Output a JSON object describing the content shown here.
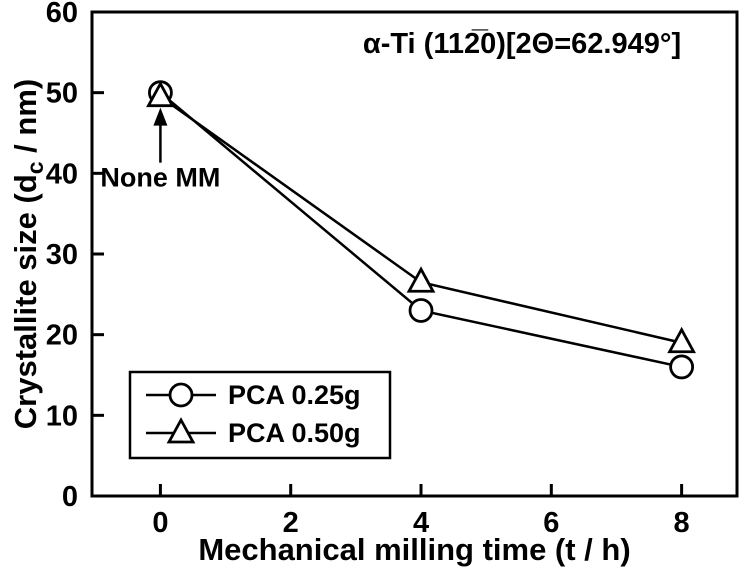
{
  "figure": {
    "background": "#ffffff",
    "line_color": "#000000"
  },
  "chart_data": {
    "type": "line",
    "title": "α-Ti (112̅0)[2Θ=62.949°]",
    "xlabel": "Mechanical milling time (t / h)",
    "ylabel": "Crystallite size (d_c / nm)",
    "ylabel_parts": {
      "pre": "Crystallite size (d",
      "sub": "c",
      "post": " / nm)"
    },
    "x": [
      0,
      4,
      8
    ],
    "series": [
      {
        "name": "PCA 0.25g",
        "marker": "circle",
        "values": [
          50,
          23,
          16
        ]
      },
      {
        "name": "PCA 0.50g",
        "marker": "triangle",
        "values": [
          49.5,
          26.5,
          19
        ]
      }
    ],
    "xlim": [
      -1.05,
      8.85
    ],
    "ylim": [
      0,
      60
    ],
    "xticks": [
      0,
      2,
      4,
      6,
      8
    ],
    "yticks": [
      0,
      10,
      20,
      30,
      40,
      50,
      60
    ],
    "grid": false,
    "legend": {
      "position": "lower-left",
      "entries": [
        "PCA 0.25g",
        "PCA 0.50g"
      ]
    },
    "annotations": [
      {
        "text": "None MM",
        "type": "arrow",
        "target_x": 0,
        "target_y": 50
      }
    ]
  }
}
